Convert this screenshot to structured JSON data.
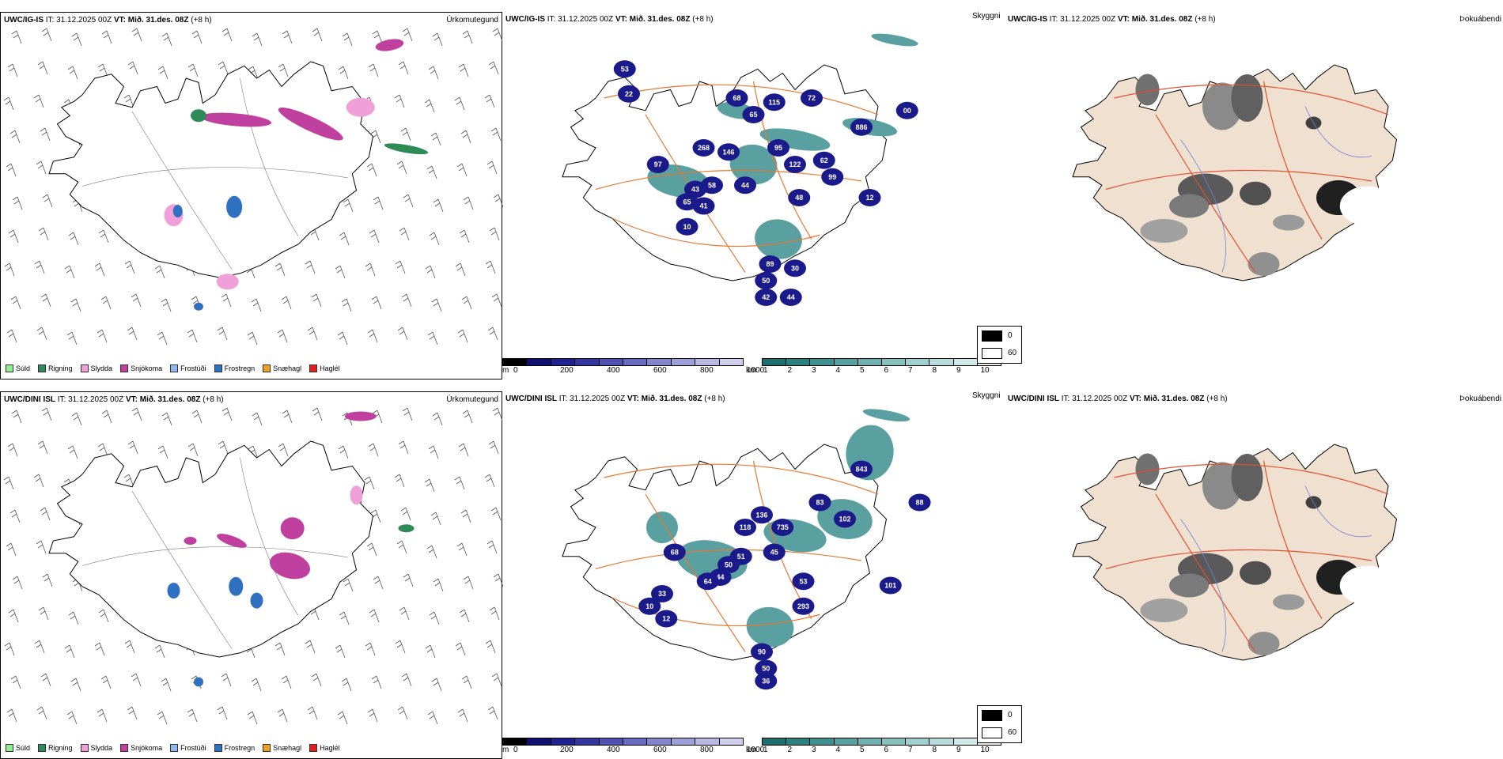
{
  "rows": [
    {
      "model": "UWC/IG-IS",
      "it_label": "IT:",
      "it_value": "31.12.2025 00Z",
      "vt_label": "VT:",
      "vt_value": "Mið. 31.des. 08Z",
      "lead": "(+8 h)",
      "precip_title": "Úrkomutegund",
      "cloud_title": "Skyggni",
      "fog_title": "Þokuábendi",
      "vis_numbers": [
        "53",
        "22",
        "68",
        "65",
        "115",
        "72",
        "97",
        "268",
        "146",
        "95",
        "122",
        "43",
        "58",
        "65",
        "41",
        "44",
        "48",
        "62",
        "99",
        "12",
        "10",
        "89",
        "30",
        "50",
        "42",
        "44",
        "886",
        "00"
      ],
      "vis_numbers_display": "53 22 68 65 115 72 97 268 146 95 122 43 58 65 41 44 48 62 99 12 10 89 30 50 42 44 886 00"
    },
    {
      "model": "UWC/DINI ISL",
      "it_label": "IT:",
      "it_value": "31.12.2025 00Z",
      "vt_label": "VT:",
      "vt_value": "Mið. 31.des. 08Z",
      "lead": "(+8 h)",
      "precip_title": "Úrkomutegund",
      "cloud_title": "Skyggni",
      "fog_title": "Þokuábendi",
      "vis_numbers": [
        "68",
        "118",
        "51",
        "50",
        "44",
        "64",
        "33",
        "10",
        "12",
        "45",
        "53",
        "136",
        "735",
        "83",
        "102",
        "843",
        "101",
        "88",
        "293",
        "90",
        "50",
        "36"
      ],
      "vis_numbers_display": "68 118 51 50 44 64 33 10 12 45 53 136 735 83 102 843 101 88 293 90 50 36"
    }
  ],
  "precip_legend": [
    {
      "label": "Súld",
      "color": "#90ee90"
    },
    {
      "label": "Rigning",
      "color": "#2e8b57"
    },
    {
      "label": "Slydda",
      "color": "#f0a0d8"
    },
    {
      "label": "Snjókoma",
      "color": "#c040a0"
    },
    {
      "label": "Frostúði",
      "color": "#90b8f0"
    },
    {
      "label": "Frostregn",
      "color": "#3070c0"
    },
    {
      "label": "Snæhagl",
      "color": "#f0a020"
    },
    {
      "label": "Haglél",
      "color": "#e02020"
    }
  ],
  "cloudbase_bar": {
    "unit": "m",
    "ticks": [
      "0",
      "200",
      "400",
      "600",
      "800",
      "1000"
    ],
    "colors": [
      "#000000",
      "#101070",
      "#202090",
      "#3535a0",
      "#5050b0",
      "#6a6ac0",
      "#8585cc",
      "#a0a0d8",
      "#b8b8e2",
      "#d0d0ec"
    ]
  },
  "visibility_bar": {
    "unit": "km",
    "ticks": [
      "1",
      "2",
      "3",
      "4",
      "5",
      "6",
      "7",
      "8",
      "9",
      "10"
    ],
    "colors": [
      "#1e6e6e",
      "#2e8080",
      "#409090",
      "#58a0a0",
      "#70b0b0",
      "#88c0c0",
      "#a0d0d0",
      "#b8dcdc",
      "#d0e8e8",
      "#e8f4f4"
    ]
  },
  "fog_legend": {
    "high": "0",
    "low": "60",
    "high_color": "#000000",
    "low_color": "#ffffff"
  },
  "colors": {
    "land_fog": "#f0e0d0",
    "roads": "#e87830",
    "rivers": "#7080e0",
    "coast": "#000000"
  }
}
